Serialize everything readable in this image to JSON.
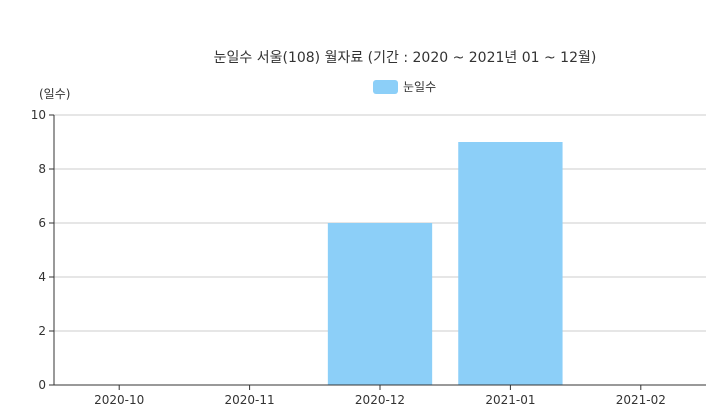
{
  "chart_data": {
    "type": "bar",
    "title": "눈일수 서울(108) 월자료 (기간 : 2020 ~ 2021년  01 ~ 12월)",
    "ylabel": "(일수)",
    "xlabel": "",
    "categories": [
      "2020-10",
      "2020-11",
      "2020-12",
      "2021-01",
      "2021-02"
    ],
    "series": [
      {
        "name": "눈일수",
        "values": [
          0,
          0,
          6,
          9,
          0
        ],
        "color": "#8ccff8"
      }
    ],
    "ylim": [
      0,
      10
    ],
    "yticks": [
      "0",
      "2",
      "4",
      "6",
      "8",
      "10"
    ],
    "grid": true,
    "legend": "top-center"
  }
}
